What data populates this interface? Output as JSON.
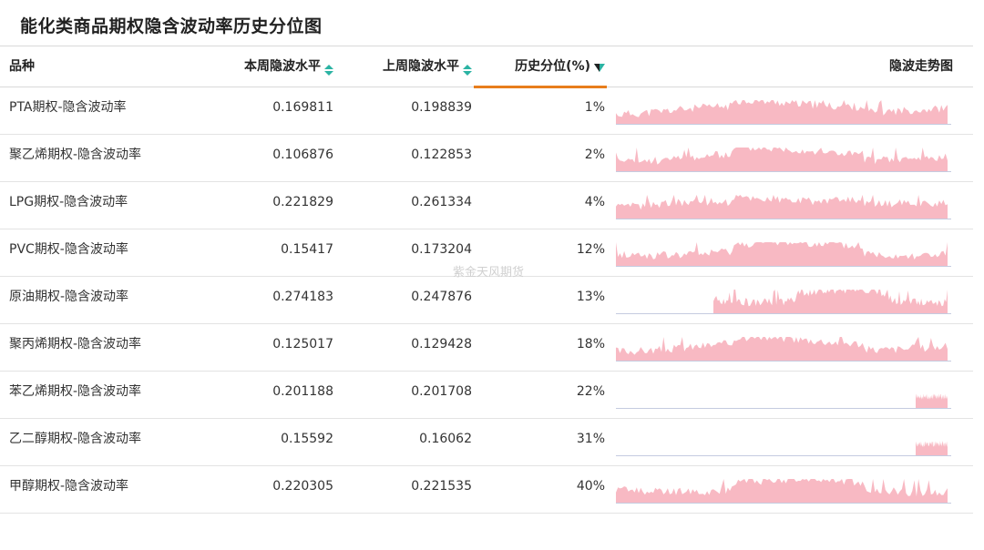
{
  "title": "能化类商品期权隐含波动率历史分位图",
  "watermark": "紫金天风期货",
  "columns": {
    "name": "品种",
    "current": "本周隐波水平",
    "previous": "上周隐波水平",
    "percentile": "历史分位(%)",
    "trend": "隐波走势图"
  },
  "colors": {
    "accent_sort": "#2bb3a3",
    "active_underline": "#e87e1c",
    "sparkline_fill": "#f8b9c3",
    "sparkline_baseline": "#c5cbe0"
  },
  "sort": {
    "column": "percentile",
    "direction": "ascending"
  },
  "rows": [
    {
      "name": "PTA期权-隐含波动率",
      "current": "0.169811",
      "previous": "0.198839",
      "percentile": "1%",
      "trend": {
        "start": 0.0,
        "seed": 11
      }
    },
    {
      "name": "聚乙烯期权-隐含波动率",
      "current": "0.106876",
      "previous": "0.122853",
      "percentile": "2%",
      "trend": {
        "start": 0.0,
        "seed": 23
      }
    },
    {
      "name": "LPG期权-隐含波动率",
      "current": "0.221829",
      "previous": "0.261334",
      "percentile": "4%",
      "trend": {
        "start": 0.0,
        "seed": 37
      }
    },
    {
      "name": "PVC期权-隐含波动率",
      "current": "0.15417",
      "previous": "0.173204",
      "percentile": "12%",
      "trend": {
        "start": 0.0,
        "seed": 41
      }
    },
    {
      "name": "原油期权-隐含波动率",
      "current": "0.274183",
      "previous": "0.247876",
      "percentile": "13%",
      "trend": {
        "start": 0.29,
        "seed": 53
      }
    },
    {
      "name": "聚丙烯期权-隐含波动率",
      "current": "0.125017",
      "previous": "0.129428",
      "percentile": "18%",
      "trend": {
        "start": 0.0,
        "seed": 67
      }
    },
    {
      "name": "苯乙烯期权-隐含波动率",
      "current": "0.201188",
      "previous": "0.201708",
      "percentile": "22%",
      "trend": {
        "start": 0.89,
        "seed": 71
      }
    },
    {
      "name": "乙二醇期权-隐含波动率",
      "current": "0.15592",
      "previous": "0.16062",
      "percentile": "31%",
      "trend": {
        "start": 0.89,
        "seed": 83
      }
    },
    {
      "name": "甲醇期权-隐含波动率",
      "current": "0.220305",
      "previous": "0.221535",
      "percentile": "40%",
      "trend": {
        "start": 0.0,
        "seed": 97
      }
    }
  ]
}
